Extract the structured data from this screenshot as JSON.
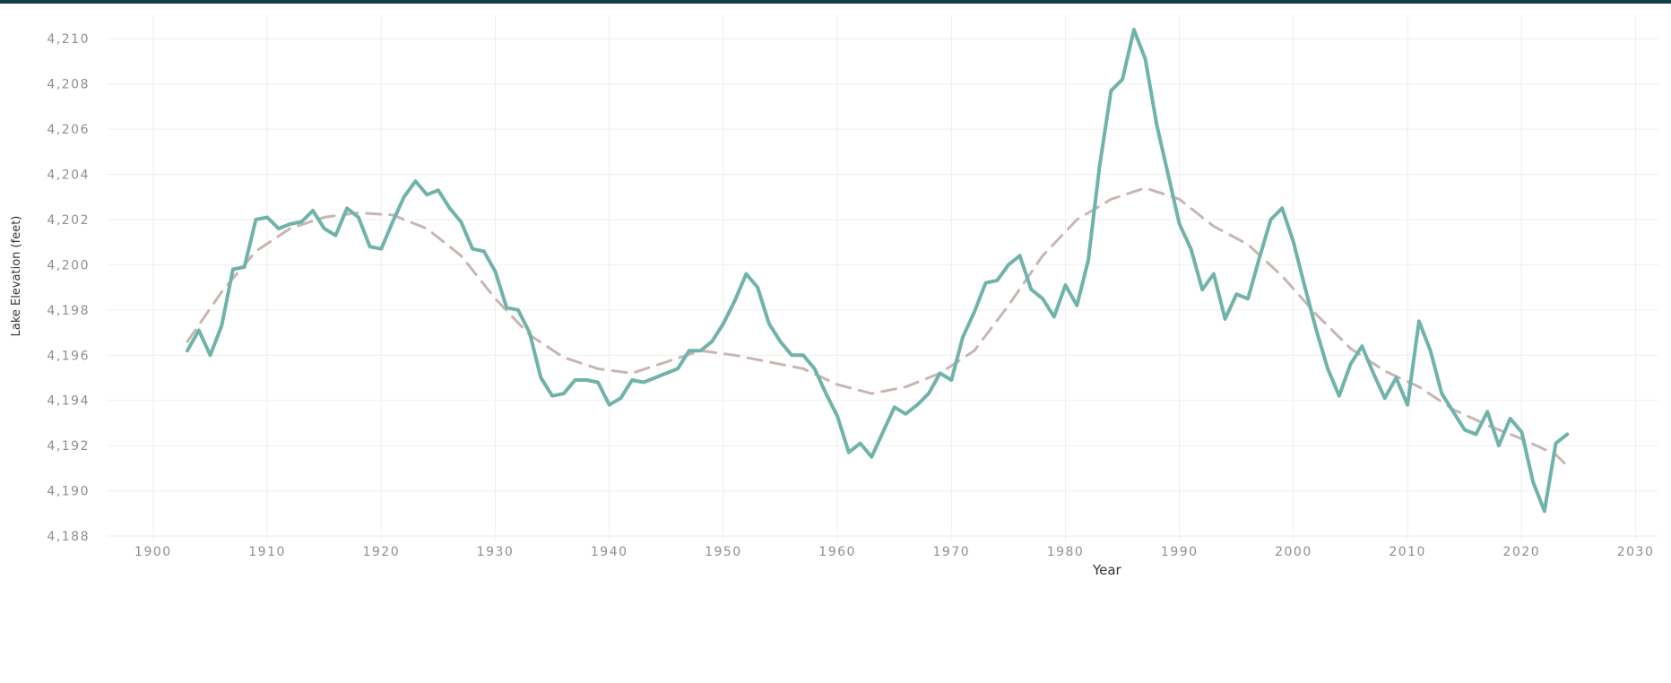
{
  "chart_data": {
    "type": "line",
    "title": "",
    "xlabel": "Year",
    "ylabel": "Lake Elevation (feet)",
    "xlim": [
      1896,
      2032
    ],
    "ylim": [
      4188,
      4211
    ],
    "xticks": [
      "1900",
      "1910",
      "1920",
      "1930",
      "1940",
      "1950",
      "1960",
      "1970",
      "1980",
      "1990",
      "2000",
      "2010",
      "2020",
      "2030"
    ],
    "xtick_values": [
      1900,
      1910,
      1920,
      1930,
      1940,
      1950,
      1960,
      1970,
      1980,
      1990,
      2000,
      2010,
      2020,
      2030
    ],
    "yticks": [
      "4,210",
      "4,208",
      "4,206",
      "4,204",
      "4,202",
      "4,200",
      "4,198",
      "4,196",
      "4,194",
      "4,192",
      "4,190",
      "4,188"
    ],
    "ytick_values": [
      4210,
      4208,
      4206,
      4204,
      4202,
      4200,
      4198,
      4196,
      4194,
      4192,
      4190,
      4188
    ],
    "grid": true,
    "colors": {
      "observed": "#6fb3ab",
      "trend": "#c9b5b1",
      "grid": "#efefef",
      "header": "#123c47"
    },
    "series": [
      {
        "style": "solid",
        "x": [
          1903,
          1904,
          1905,
          1906,
          1907,
          1908,
          1909,
          1910,
          1911,
          1912,
          1913,
          1914,
          1915,
          1916,
          1917,
          1918,
          1919,
          1920,
          1921,
          1922,
          1923,
          1924,
          1925,
          1926,
          1927,
          1928,
          1929,
          1930,
          1931,
          1932,
          1933,
          1934,
          1935,
          1936,
          1937,
          1938,
          1939,
          1940,
          1941,
          1942,
          1943,
          1944,
          1945,
          1946,
          1947,
          1948,
          1949,
          1950,
          1951,
          1952,
          1953,
          1954,
          1955,
          1956,
          1957,
          1958,
          1959,
          1960,
          1961,
          1962,
          1963,
          1964,
          1965,
          1966,
          1967,
          1968,
          1969,
          1970,
          1971,
          1972,
          1973,
          1974,
          1975,
          1976,
          1977,
          1978,
          1979,
          1980,
          1981,
          1982,
          1983,
          1984,
          1985,
          1986,
          1987,
          1988,
          1989,
          1990,
          1991,
          1992,
          1993,
          1994,
          1995,
          1996,
          1997,
          1998,
          1999,
          2000,
          2001,
          2002,
          2003,
          2004,
          2005,
          2006,
          2007,
          2008,
          2009,
          2010,
          2011,
          2012,
          2013,
          2014,
          2015,
          2016,
          2017,
          2018,
          2019,
          2020,
          2021,
          2022,
          2023,
          2024
        ],
        "y": [
          4196.2,
          4197.1,
          4196.0,
          4197.3,
          4199.8,
          4199.9,
          4202.0,
          4202.1,
          4201.6,
          4201.8,
          4201.9,
          4202.4,
          4201.6,
          4201.3,
          4202.5,
          4202.1,
          4200.8,
          4200.7,
          4201.9,
          4203.0,
          4203.7,
          4203.1,
          4203.3,
          4202.5,
          4201.9,
          4200.7,
          4200.6,
          4199.7,
          4198.1,
          4198.0,
          4197.0,
          4195.0,
          4194.2,
          4194.3,
          4194.9,
          4194.9,
          4194.8,
          4193.8,
          4194.1,
          4194.9,
          4194.8,
          4195.0,
          4195.2,
          4195.4,
          4196.2,
          4196.2,
          4196.6,
          4197.4,
          4198.4,
          4199.6,
          4199.0,
          4197.4,
          4196.6,
          4196.0,
          4196.0,
          4195.4,
          4194.3,
          4193.3,
          4191.7,
          4192.1,
          4191.5,
          4192.6,
          4193.7,
          4193.4,
          4193.8,
          4194.3,
          4195.2,
          4194.9,
          4196.8,
          4197.9,
          4199.2,
          4199.3,
          4200.0,
          4200.4,
          4198.9,
          4198.5,
          4197.7,
          4199.1,
          4198.2,
          4200.2,
          4204.4,
          4207.7,
          4208.2,
          4210.4,
          4209.1,
          4206.2,
          4204.0,
          4201.8,
          4200.7,
          4198.9,
          4199.6,
          4197.6,
          4198.7,
          4198.5,
          4200.3,
          4202.0,
          4202.5,
          4201.0,
          4199.0,
          4197.1,
          4195.4,
          4194.2,
          4195.6,
          4196.4,
          4195.2,
          4194.1,
          4195.0,
          4193.8,
          4197.5,
          4196.2,
          4194.3,
          4193.5,
          4192.7,
          4192.5,
          4193.5,
          4192.0,
          4193.2,
          4192.6,
          4190.4,
          4189.1,
          4192.1,
          4192.5
        ]
      },
      {
        "style": "dashed",
        "x": [
          1903,
          1906,
          1909,
          1912,
          1915,
          1918,
          1921,
          1924,
          1927,
          1930,
          1933,
          1936,
          1939,
          1942,
          1945,
          1948,
          1951,
          1954,
          1957,
          1960,
          1963,
          1966,
          1969,
          1972,
          1975,
          1978,
          1981,
          1984,
          1987,
          1990,
          1993,
          1996,
          1999,
          2002,
          2005,
          2008,
          2011,
          2014,
          2017,
          2020,
          2023,
          2024
        ],
        "y": [
          4196.6,
          4198.8,
          4200.6,
          4201.6,
          4202.1,
          4202.3,
          4202.2,
          4201.6,
          4200.4,
          4198.5,
          4196.9,
          4195.9,
          4195.4,
          4195.2,
          4195.7,
          4196.2,
          4196.0,
          4195.7,
          4195.4,
          4194.7,
          4194.3,
          4194.6,
          4195.2,
          4196.2,
          4198.2,
          4200.4,
          4202.0,
          4202.9,
          4203.4,
          4202.9,
          4201.7,
          4200.9,
          4199.5,
          4197.8,
          4196.3,
          4195.3,
          4194.6,
          4193.6,
          4192.9,
          4192.3,
          4191.6,
          4191.1
        ]
      }
    ]
  }
}
